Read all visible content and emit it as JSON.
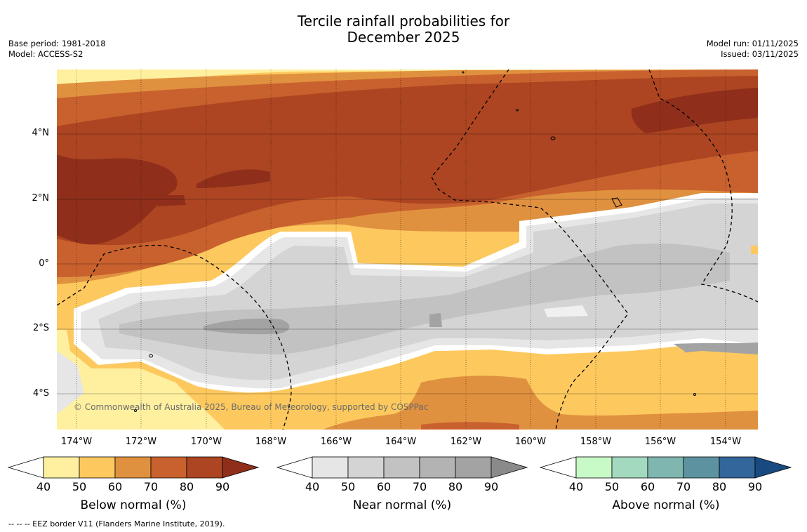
{
  "title_line1": "Tercile rainfall probabilities for",
  "title_line2": "December 2025",
  "base_period": "Base period: 1981-2018",
  "model": "Model: ACCESS-S2",
  "model_run": "Model run: 01/11/2025",
  "issued": "Issued: 03/11/2025",
  "lat_labels": [
    "4°N",
    "2°N",
    "0°",
    "2°S",
    "4°S"
  ],
  "lon_labels": [
    "174°W",
    "172°W",
    "170°W",
    "168°W",
    "166°W",
    "164°W",
    "162°W",
    "160°W",
    "158°W",
    "156°W",
    "154°W"
  ],
  "copyright": "© Commonwealth of Australia 2025, Bureau of Meteorology, supported by COSPPac",
  "footnote": "--  --  -- EEZ border V11 (Flanders Marine Institute, 2019).",
  "colorbars": [
    {
      "label": "Below normal (%)",
      "ticks": [
        "40",
        "50",
        "60",
        "70",
        "80",
        "90"
      ],
      "colors": [
        "#ffffff",
        "#fff0a0",
        "#fdc95f",
        "#e0913f",
        "#c9612e",
        "#ad4522",
        "#8f2f1b"
      ]
    },
    {
      "label": "Near normal (%)",
      "ticks": [
        "40",
        "50",
        "60",
        "70",
        "80",
        "90"
      ],
      "colors": [
        "#ffffff",
        "#e6e6e6",
        "#d4d4d4",
        "#c2c2c2",
        "#b3b3b3",
        "#a3a3a3",
        "#8a8a8a"
      ]
    },
    {
      "label": "Above normal (%)",
      "ticks": [
        "40",
        "50",
        "60",
        "70",
        "80",
        "90"
      ],
      "colors": [
        "#ffffff",
        "#c8fac8",
        "#a3d9bf",
        "#80b6b0",
        "#5d93a0",
        "#33669a",
        "#184a80"
      ]
    }
  ]
}
